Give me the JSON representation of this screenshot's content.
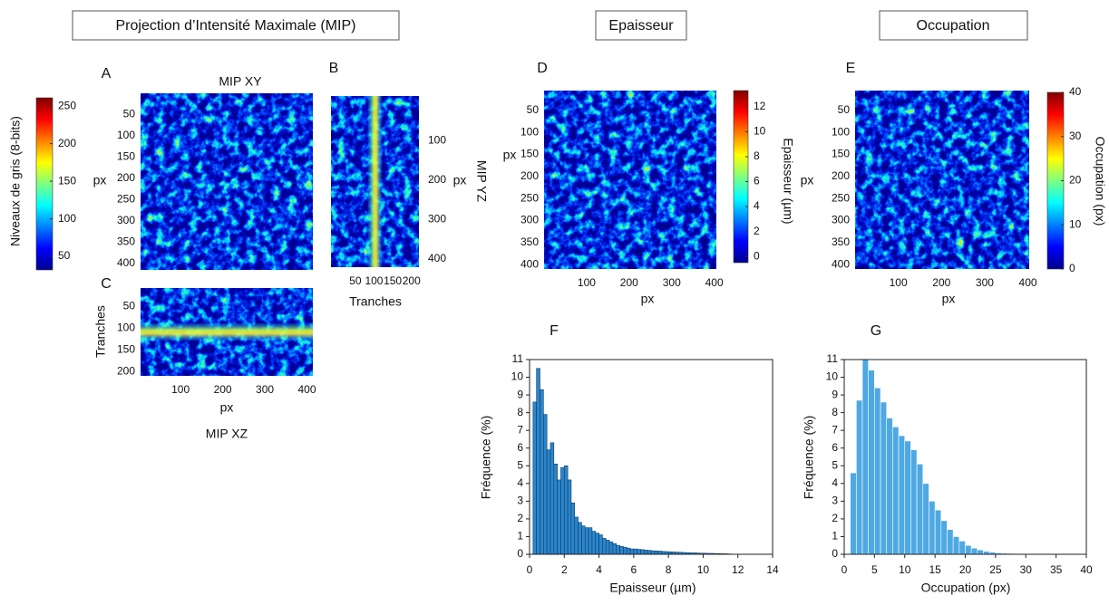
{
  "headers": [
    "Projection d’Intensité Maximale (MIP)",
    "Epaisseur",
    "Occupation"
  ],
  "chart_data": [
    {
      "type": "heatmap",
      "panel": "A",
      "title": "MIP XY",
      "ylabel": "px",
      "ylim": [
        0,
        415
      ],
      "yticks": [
        50,
        100,
        150,
        200,
        250,
        300,
        350,
        400
      ],
      "colorbar": {
        "label": "Niveaux de gris (8-bits)",
        "lim": [
          32,
          261
        ],
        "ticks": [
          50,
          100,
          150,
          200,
          250
        ]
      }
    },
    {
      "type": "heatmap",
      "panel": "B",
      "title": "MIP YZ",
      "xlabel": "Tranches",
      "ylabel": "px",
      "xlim": [
        -15,
        220
      ],
      "xticks": [
        50,
        100,
        150,
        200
      ],
      "ylim": [
        -14,
        421
      ],
      "yticks": [
        100,
        200,
        300,
        400
      ]
    },
    {
      "type": "heatmap",
      "panel": "C",
      "title": "MIP XZ",
      "xlabel": "px",
      "ylabel": "Tranches",
      "xlim": [
        5,
        414
      ],
      "xticks": [
        100,
        200,
        300,
        400
      ],
      "ylim": [
        8,
        210
      ],
      "yticks": [
        50,
        100,
        150,
        200
      ]
    },
    {
      "type": "heatmap",
      "panel": "D",
      "xlabel": "px",
      "ylabel": "px",
      "xlim": [
        0,
        405
      ],
      "xticks": [
        100,
        200,
        300,
        400
      ],
      "ylim": [
        5,
        410
      ],
      "yticks": [
        50,
        100,
        150,
        200,
        250,
        300,
        350,
        400
      ],
      "colorbar": {
        "label": "Epaisseur (µm)",
        "lim": [
          -0.5,
          13.3
        ],
        "ticks": [
          0,
          2,
          4,
          6,
          8,
          10,
          12
        ]
      }
    },
    {
      "type": "heatmap",
      "panel": "E",
      "xlabel": "px",
      "ylabel": "px",
      "xlim": [
        0,
        403
      ],
      "xticks": [
        100,
        200,
        300,
        400
      ],
      "ylim": [
        5,
        410
      ],
      "yticks": [
        50,
        100,
        150,
        200,
        250,
        300,
        350,
        400
      ],
      "colorbar": {
        "label": "Occupation (px)",
        "lim": [
          0,
          40
        ],
        "ticks": [
          0,
          10,
          20,
          30,
          40
        ]
      }
    },
    {
      "type": "histogram",
      "panel": "F",
      "xlabel": "Epaisseur (µm)",
      "ylabel": "Fréquence (%)",
      "color": "#2b86cc",
      "bins": [
        0.2,
        0.4,
        0.6,
        0.8,
        1,
        1.2,
        1.4,
        1.6,
        1.8,
        2,
        2.2,
        2.4,
        2.6,
        2.8,
        3,
        3.2,
        3.4,
        3.6,
        3.8,
        4,
        4.2,
        4.4,
        4.6,
        4.8,
        5,
        5.2,
        5.4,
        5.6,
        5.8,
        6,
        6.2,
        6.4,
        6.6,
        6.8,
        7,
        7.2,
        7.4,
        7.6,
        7.8,
        8,
        8.2,
        8.4,
        8.6,
        8.8,
        9,
        9.2,
        9.4,
        9.6,
        9.8,
        10,
        10.2,
        10.4,
        10.6,
        10.8,
        11,
        11.2,
        11.4,
        11.6
      ],
      "values": [
        8.6,
        10.5,
        9.3,
        7.9,
        5.9,
        6.3,
        5.1,
        4.2,
        4.9,
        5.0,
        4.2,
        2.9,
        2.1,
        1.8,
        1.6,
        1.5,
        1.5,
        1.3,
        1.2,
        1.1,
        0.9,
        0.8,
        0.7,
        0.6,
        0.5,
        0.45,
        0.4,
        0.35,
        0.3,
        0.3,
        0.28,
        0.26,
        0.24,
        0.22,
        0.2,
        0.19,
        0.18,
        0.16,
        0.15,
        0.14,
        0.13,
        0.12,
        0.11,
        0.1,
        0.09,
        0.08,
        0.08,
        0.07,
        0.06,
        0.06,
        0.05,
        0.05,
        0.04,
        0.04,
        0.03,
        0.03,
        0.02
      ],
      "xlim": [
        0,
        14
      ],
      "xticks": [
        0,
        2,
        4,
        6,
        8,
        10,
        12,
        14
      ],
      "ylim": [
        0,
        11
      ],
      "yticks": [
        0,
        1,
        2,
        3,
        4,
        5,
        6,
        7,
        8,
        9,
        10,
        11
      ]
    },
    {
      "type": "histogram",
      "panel": "G",
      "xlabel": "Occupation (px)",
      "ylabel": "Fréquence (%)",
      "color": "#4ea9e2",
      "bins": [
        1,
        2,
        3,
        4,
        5,
        6,
        7,
        8,
        9,
        10,
        11,
        12,
        13,
        14,
        15,
        16,
        17,
        18,
        19,
        20,
        21,
        22,
        23,
        24,
        25,
        26,
        27,
        28,
        29,
        30,
        31,
        32,
        33,
        34,
        35,
        36,
        37,
        38,
        39
      ],
      "values": [
        4.6,
        8.7,
        11.0,
        10.4,
        9.4,
        8.6,
        7.7,
        7.2,
        6.7,
        6.4,
        5.9,
        5.1,
        4.0,
        3.0,
        2.5,
        1.9,
        1.4,
        1.0,
        0.75,
        0.5,
        0.35,
        0.25,
        0.17,
        0.12,
        0.08,
        0.06,
        0.05,
        0.04,
        0.03,
        0.03,
        0.02,
        0.02,
        0.02,
        0.01,
        0.01,
        0.01,
        0.01,
        0.01
      ],
      "xlim": [
        0,
        40
      ],
      "xticks": [
        0,
        5,
        10,
        15,
        20,
        25,
        30,
        35,
        40
      ],
      "ylim": [
        0,
        11
      ],
      "yticks": [
        0,
        1,
        2,
        3,
        4,
        5,
        6,
        7,
        8,
        9,
        10,
        11
      ]
    }
  ]
}
